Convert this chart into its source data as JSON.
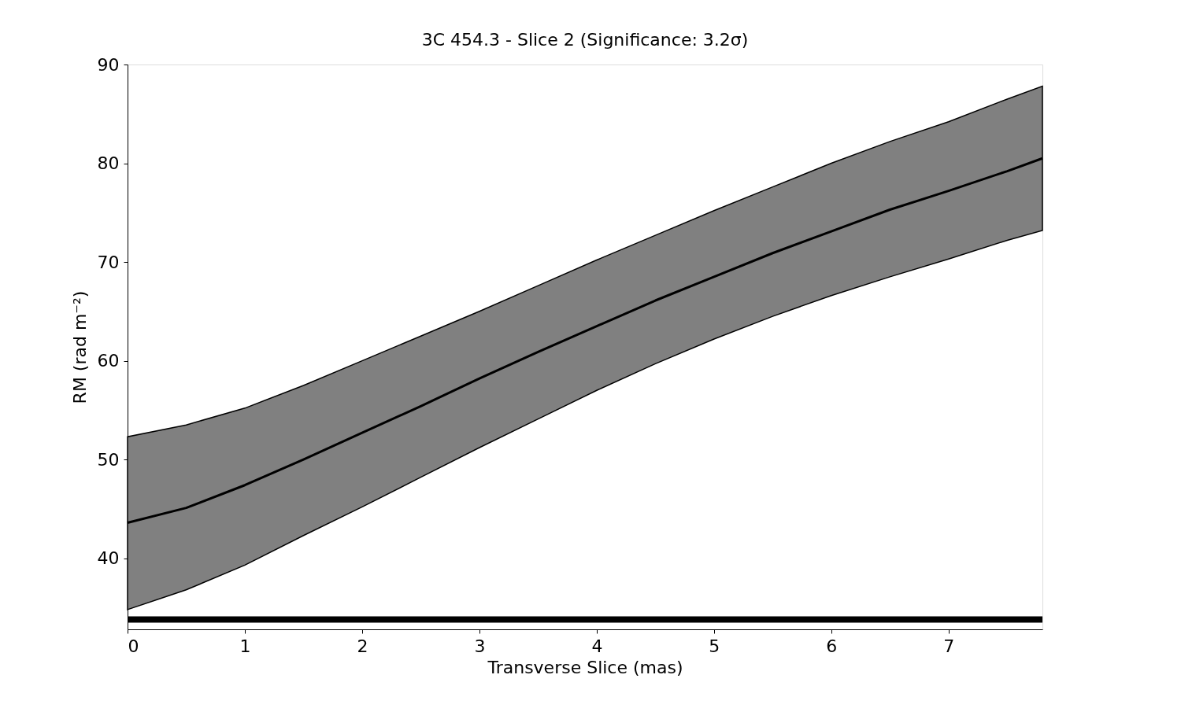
{
  "chart_data": {
    "type": "line",
    "title": "3C 454.3 - Slice 2 (Significance: 3.2σ)",
    "xlabel": "Transverse Slice (mas)",
    "ylabel": "RM (rad m⁻²)",
    "x": [
      0,
      0.5,
      1,
      1.5,
      2,
      2.5,
      3,
      3.5,
      4,
      4.5,
      5,
      5.5,
      6,
      6.5,
      7,
      7.5,
      7.8
    ],
    "series": [
      {
        "color": "#000000",
        "values": [
          43.6,
          45.1,
          47.4,
          50.0,
          52.7,
          55.4,
          58.2,
          60.9,
          63.5,
          66.1,
          68.5,
          70.9,
          73.1,
          75.3,
          77.2,
          79.2,
          80.5
        ],
        "lower": [
          34.8,
          36.8,
          39.3,
          42.3,
          45.2,
          48.2,
          51.2,
          54.1,
          57.0,
          59.7,
          62.2,
          64.5,
          66.6,
          68.5,
          70.3,
          72.2,
          73.2
        ],
        "upper": [
          52.3,
          53.5,
          55.2,
          57.5,
          60.0,
          62.5,
          65.0,
          67.6,
          70.2,
          72.7,
          75.2,
          77.6,
          80.0,
          82.2,
          84.2,
          86.5,
          87.8
        ]
      }
    ],
    "xlim": [
      0,
      7.8
    ],
    "xticks": [
      0,
      1,
      2,
      3,
      4,
      5,
      6,
      7
    ],
    "ylim": [
      32.8,
      90
    ],
    "yticks": [
      40,
      50,
      60,
      70,
      80,
      90
    ],
    "ref_lines": [
      {
        "axis": "y",
        "value": 33.8,
        "color": "#000000"
      }
    ],
    "grid": false,
    "line_style": "solid",
    "marker": "none"
  }
}
